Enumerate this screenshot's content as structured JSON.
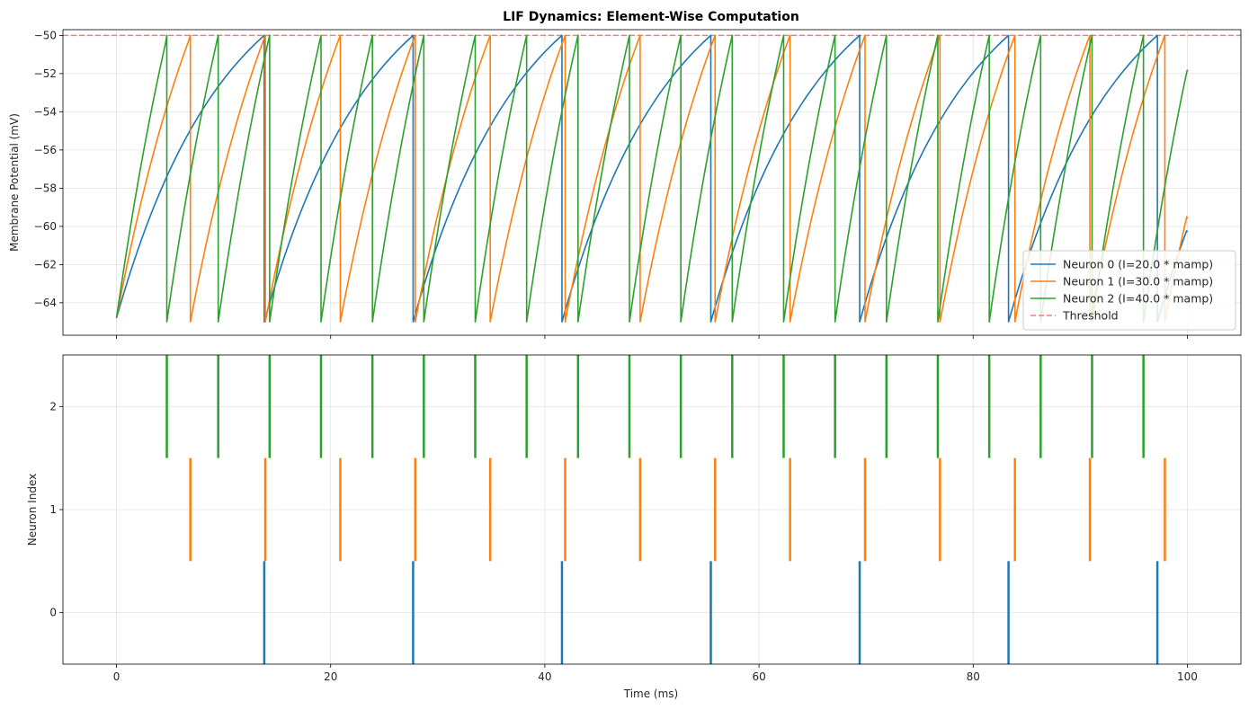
{
  "chart_data": [
    {
      "type": "line",
      "title": "LIF Dynamics: Element-Wise Computation",
      "xlabel": "",
      "ylabel": "Membrane Potential (mV)",
      "xlim": [
        -5,
        105
      ],
      "ylim": [
        -65.7,
        -49.7
      ],
      "xticks": [
        0,
        20,
        40,
        60,
        80,
        100
      ],
      "yticks": [
        -64,
        -62,
        -60,
        -58,
        -56,
        -54,
        -52,
        -50
      ],
      "ytick_labels": [
        "−64",
        "−62",
        "−60",
        "−58",
        "−56",
        "−54",
        "−52",
        "−50"
      ],
      "grid": true,
      "legend_position": "lower-right",
      "v_rest": -65,
      "v_reset": -65,
      "threshold": {
        "value": -50,
        "label": "Threshold",
        "color": "#f08080",
        "style": "dashed"
      },
      "series": [
        {
          "name": "Neuron 0 (I=20.0 * mamp)",
          "color": "#1f77b4",
          "drive_mV": 20.0,
          "initial_mV": -64.8,
          "end_mV": -60.3,
          "spike_times": [
            13.8,
            27.7,
            41.6,
            55.5,
            69.4,
            83.3,
            97.2
          ]
        },
        {
          "name": "Neuron 1 (I=30.0 * mamp)",
          "color": "#ff7f0e",
          "drive_mV": 30.0,
          "initial_mV": -64.8,
          "end_mV": -59.6,
          "spike_times": [
            6.9,
            13.9,
            20.9,
            27.9,
            34.9,
            41.9,
            48.9,
            55.9,
            62.9,
            69.9,
            76.9,
            83.9,
            90.9,
            97.9
          ]
        },
        {
          "name": "Neuron 2 (I=40.0 * mamp)",
          "color": "#2ca02c",
          "drive_mV": 40.0,
          "initial_mV": -64.8,
          "end_mV": -51.8,
          "spike_times": [
            4.7,
            9.5,
            14.3,
            19.1,
            23.9,
            28.7,
            33.5,
            38.3,
            43.1,
            47.9,
            52.7,
            57.5,
            62.3,
            67.1,
            71.9,
            76.7,
            81.5,
            86.3,
            91.1,
            95.9
          ]
        }
      ]
    },
    {
      "type": "scatter",
      "subtype": "raster",
      "title": "",
      "xlabel": "Time (ms)",
      "ylabel": "Neuron Index",
      "xlim": [
        -5,
        105
      ],
      "ylim": [
        -0.5,
        2.5
      ],
      "xticks": [
        0,
        20,
        40,
        60,
        80,
        100
      ],
      "yticks": [
        0,
        1,
        2
      ],
      "grid": true,
      "rows": [
        {
          "index": 0,
          "color": "#1f77b4",
          "spike_times": [
            13.8,
            27.7,
            41.6,
            55.5,
            69.4,
            83.3,
            97.2
          ]
        },
        {
          "index": 1,
          "color": "#ff7f0e",
          "spike_times": [
            6.9,
            13.9,
            20.9,
            27.9,
            34.9,
            41.9,
            48.9,
            55.9,
            62.9,
            69.9,
            76.9,
            83.9,
            90.9,
            97.9
          ]
        },
        {
          "index": 2,
          "color": "#2ca02c",
          "spike_times": [
            4.7,
            9.5,
            14.3,
            19.1,
            23.9,
            28.7,
            33.5,
            38.3,
            43.1,
            47.9,
            52.7,
            57.5,
            62.3,
            67.1,
            71.9,
            76.7,
            81.5,
            86.3,
            91.1,
            95.9
          ]
        }
      ]
    }
  ]
}
